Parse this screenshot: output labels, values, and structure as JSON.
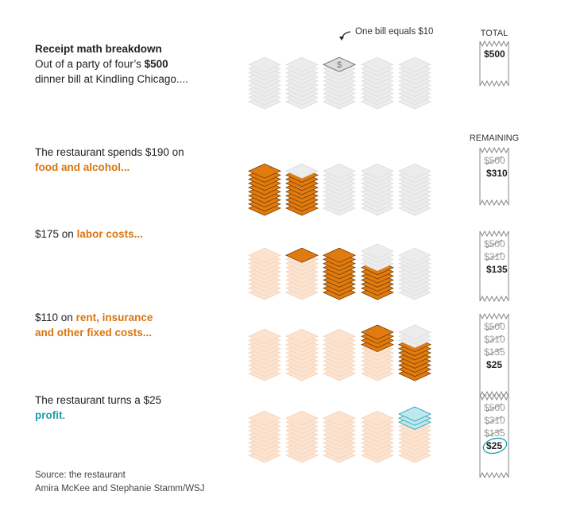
{
  "intro": {
    "title": "Receipt math breakdown",
    "line1": "Out of a party of four’s ",
    "amount": "$500",
    "line2": "dinner bill at Kindling Chicago...."
  },
  "note": "One bill equals $10",
  "labels": {
    "total": "TOTAL",
    "remaining": "REMAINING"
  },
  "steps": [
    {
      "pre": "The restaurant spends $190 on ",
      "hl": "food and alcohol...",
      "post": ""
    },
    {
      "pre": "$175 on ",
      "hl": "labor costs...",
      "post": ""
    },
    {
      "pre": "$110 on ",
      "hl": "rent, insurance and other fixed costs...",
      "post": ""
    },
    {
      "pre": "The restaurant turns a $25 ",
      "hl": "profit",
      "post": "."
    }
  ],
  "receipts": [
    {
      "struck": [],
      "current": "$500"
    },
    {
      "struck": [
        "$500"
      ],
      "current": "$310"
    },
    {
      "struck": [
        "$500",
        "$310"
      ],
      "current": "$135"
    },
    {
      "struck": [
        "$500",
        "$310",
        "$135"
      ],
      "current": "$25"
    },
    {
      "struck": [
        "$500",
        "$310",
        "$135"
      ],
      "current": "$25",
      "circled": true
    }
  ],
  "stacks": [
    [
      {
        "remaining": 10
      },
      {
        "remaining": 10
      },
      {
        "remaining": 10,
        "dollar": true
      },
      {
        "remaining": 10
      },
      {
        "remaining": 10
      }
    ],
    [
      {
        "current": 10
      },
      {
        "current": 9,
        "remaining": 1
      },
      {
        "remaining": 10
      },
      {
        "remaining": 10
      },
      {
        "remaining": 10
      }
    ],
    [
      {
        "past": 10
      },
      {
        "past": 9,
        "current": 1
      },
      {
        "current": 10
      },
      {
        "current": 6.5,
        "remaining": 3.5
      },
      {
        "remaining": 10
      }
    ],
    [
      {
        "past": 10
      },
      {
        "past": 10
      },
      {
        "past": 10
      },
      {
        "past": 6.5,
        "current": 3.5
      },
      {
        "current": 7.5,
        "remaining": 2.5
      }
    ],
    [
      {
        "past": 10
      },
      {
        "past": 10
      },
      {
        "past": 10
      },
      {
        "past": 10
      },
      {
        "past": 7.5,
        "profit": 2.5
      }
    ]
  ],
  "colors": {
    "past": "#fbe3d0",
    "current": "#e07b10",
    "remaining": "#ececec",
    "profit": "#bfe8ee",
    "accent": "#d8750f",
    "profit_text": "#1f9db0"
  },
  "source": "Source: the restaurant",
  "credit": "Amira McKee and Stephanie Stamm/WSJ"
}
